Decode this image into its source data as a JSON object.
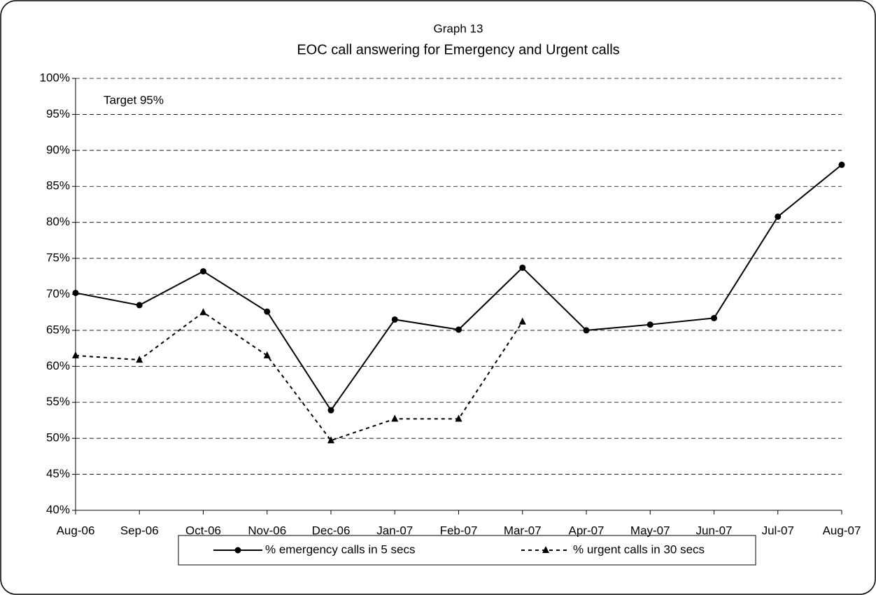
{
  "chart_data": {
    "type": "line",
    "title": "EOC call answering for Emergency and Urgent calls",
    "subtitle": "Graph 13",
    "annotation": "Target 95%",
    "categories": [
      "Aug-06",
      "Sep-06",
      "Oct-06",
      "Nov-06",
      "Dec-06",
      "Jan-07",
      "Feb-07",
      "Mar-07",
      "Apr-07",
      "May-07",
      "Jun-07",
      "Jul-07",
      "Aug-07"
    ],
    "series": [
      {
        "name": "% emergency calls in 5 secs",
        "color": "#000000",
        "dash": "solid",
        "marker": "circle",
        "values": [
          70.2,
          68.5,
          73.2,
          67.6,
          53.9,
          66.5,
          65.1,
          73.7,
          65.0,
          65.8,
          66.7,
          80.8,
          88.0
        ]
      },
      {
        "name": "% urgent calls in 30 secs",
        "color": "#000000",
        "dash": "dashed",
        "marker": "triangle",
        "values": [
          61.5,
          60.9,
          67.5,
          61.5,
          49.7,
          52.7,
          52.7,
          66.2,
          null,
          null,
          null,
          null,
          null
        ]
      }
    ],
    "ylim": [
      40,
      100
    ],
    "yticks": [
      {
        "value": 40,
        "label": "40%"
      },
      {
        "value": 45,
        "label": "45%"
      },
      {
        "value": 50,
        "label": "50%"
      },
      {
        "value": 55,
        "label": "55%"
      },
      {
        "value": 60,
        "label": "60%"
      },
      {
        "value": 65,
        "label": "65%"
      },
      {
        "value": 70,
        "label": "70%"
      },
      {
        "value": 75,
        "label": "75%"
      },
      {
        "value": 80,
        "label": "80%"
      },
      {
        "value": 85,
        "label": "85%"
      },
      {
        "value": 90,
        "label": "90%"
      },
      {
        "value": 95,
        "label": "95%"
      },
      {
        "value": 100,
        "label": "100%"
      }
    ],
    "grid": true,
    "legend": "bottom"
  }
}
